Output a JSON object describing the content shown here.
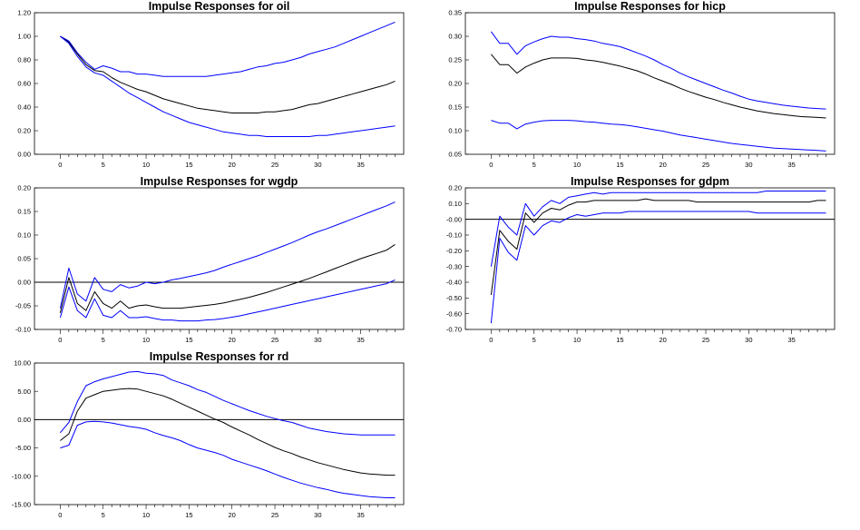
{
  "colors": {
    "point": "#000000",
    "band": "#0000ff",
    "frame": "#000000"
  },
  "chart_data": [
    {
      "type": "line",
      "title": "Impulse Responses for oil",
      "x": [
        0,
        1,
        2,
        3,
        4,
        5,
        6,
        7,
        8,
        9,
        10,
        11,
        12,
        13,
        14,
        15,
        16,
        17,
        18,
        19,
        20,
        21,
        22,
        23,
        24,
        25,
        26,
        27,
        28,
        29,
        30,
        31,
        32,
        33,
        34,
        35,
        36,
        37,
        38,
        39
      ],
      "xticks": [
        0,
        5,
        10,
        15,
        20,
        25,
        30,
        35
      ],
      "yticks": [
        0.0,
        0.2,
        0.4,
        0.6,
        0.8,
        1.0,
        1.2
      ],
      "ytick_labels": [
        "0.00",
        "0.20",
        "0.40",
        "0.60",
        "0.80",
        "1.00",
        "1.20"
      ],
      "ylim": [
        0.0,
        1.2
      ],
      "zero_line": false,
      "series": [
        {
          "role": "upper",
          "color": "#0000ff",
          "values": [
            1.0,
            0.96,
            0.86,
            0.78,
            0.72,
            0.75,
            0.73,
            0.7,
            0.7,
            0.68,
            0.68,
            0.67,
            0.66,
            0.66,
            0.66,
            0.66,
            0.66,
            0.66,
            0.67,
            0.68,
            0.69,
            0.7,
            0.72,
            0.74,
            0.75,
            0.77,
            0.78,
            0.8,
            0.82,
            0.85,
            0.87,
            0.89,
            0.91,
            0.94,
            0.97,
            1.0,
            1.03,
            1.06,
            1.09,
            1.12
          ]
        },
        {
          "role": "estimate",
          "color": "#000000",
          "values": [
            1.0,
            0.95,
            0.85,
            0.76,
            0.71,
            0.7,
            0.65,
            0.61,
            0.58,
            0.55,
            0.53,
            0.5,
            0.47,
            0.45,
            0.43,
            0.41,
            0.39,
            0.38,
            0.37,
            0.36,
            0.35,
            0.35,
            0.35,
            0.35,
            0.36,
            0.36,
            0.37,
            0.38,
            0.4,
            0.42,
            0.43,
            0.45,
            0.47,
            0.49,
            0.51,
            0.53,
            0.55,
            0.57,
            0.59,
            0.62
          ]
        },
        {
          "role": "lower",
          "color": "#0000ff",
          "values": [
            1.0,
            0.94,
            0.83,
            0.74,
            0.69,
            0.67,
            0.62,
            0.57,
            0.52,
            0.48,
            0.44,
            0.4,
            0.36,
            0.33,
            0.3,
            0.27,
            0.25,
            0.23,
            0.21,
            0.19,
            0.18,
            0.17,
            0.16,
            0.16,
            0.15,
            0.15,
            0.15,
            0.15,
            0.15,
            0.15,
            0.16,
            0.16,
            0.17,
            0.18,
            0.19,
            0.2,
            0.21,
            0.22,
            0.23,
            0.24
          ]
        }
      ]
    },
    {
      "type": "line",
      "title": "Impulse Responses for hicp",
      "x": [
        0,
        1,
        2,
        3,
        4,
        5,
        6,
        7,
        8,
        9,
        10,
        11,
        12,
        13,
        14,
        15,
        16,
        17,
        18,
        19,
        20,
        21,
        22,
        23,
        24,
        25,
        26,
        27,
        28,
        29,
        30,
        31,
        32,
        33,
        34,
        35,
        36,
        37,
        38,
        39
      ],
      "xticks": [
        0,
        5,
        10,
        15,
        20,
        25,
        30,
        35
      ],
      "yticks": [
        0.05,
        0.1,
        0.15,
        0.2,
        0.25,
        0.3,
        0.35
      ],
      "ytick_labels": [
        "0.05",
        "0.10",
        "0.15",
        "0.20",
        "0.25",
        "0.30",
        "0.35"
      ],
      "ylim": [
        0.05,
        0.35
      ],
      "zero_line": false,
      "series": [
        {
          "role": "upper",
          "color": "#0000ff",
          "values": [
            0.31,
            0.285,
            0.285,
            0.262,
            0.28,
            0.288,
            0.295,
            0.3,
            0.298,
            0.298,
            0.295,
            0.293,
            0.29,
            0.285,
            0.282,
            0.278,
            0.272,
            0.265,
            0.258,
            0.25,
            0.24,
            0.232,
            0.222,
            0.214,
            0.207,
            0.2,
            0.193,
            0.186,
            0.18,
            0.173,
            0.167,
            0.163,
            0.16,
            0.157,
            0.154,
            0.152,
            0.15,
            0.148,
            0.147,
            0.146
          ]
        },
        {
          "role": "estimate",
          "color": "#000000",
          "values": [
            0.262,
            0.24,
            0.24,
            0.222,
            0.235,
            0.243,
            0.25,
            0.254,
            0.254,
            0.254,
            0.253,
            0.25,
            0.248,
            0.245,
            0.241,
            0.237,
            0.232,
            0.227,
            0.22,
            0.212,
            0.205,
            0.198,
            0.19,
            0.183,
            0.177,
            0.171,
            0.166,
            0.16,
            0.155,
            0.15,
            0.146,
            0.142,
            0.139,
            0.136,
            0.134,
            0.132,
            0.13,
            0.129,
            0.128,
            0.127
          ]
        },
        {
          "role": "lower",
          "color": "#0000ff",
          "values": [
            0.122,
            0.116,
            0.116,
            0.104,
            0.114,
            0.118,
            0.121,
            0.122,
            0.122,
            0.122,
            0.121,
            0.119,
            0.118,
            0.116,
            0.114,
            0.113,
            0.111,
            0.108,
            0.105,
            0.102,
            0.099,
            0.095,
            0.091,
            0.088,
            0.085,
            0.082,
            0.079,
            0.076,
            0.073,
            0.071,
            0.069,
            0.067,
            0.065,
            0.063,
            0.062,
            0.061,
            0.06,
            0.059,
            0.058,
            0.057
          ]
        }
      ]
    },
    {
      "type": "line",
      "title": "Impulse Responses for wgdp",
      "x": [
        0,
        1,
        2,
        3,
        4,
        5,
        6,
        7,
        8,
        9,
        10,
        11,
        12,
        13,
        14,
        15,
        16,
        17,
        18,
        19,
        20,
        21,
        22,
        23,
        24,
        25,
        26,
        27,
        28,
        29,
        30,
        31,
        32,
        33,
        34,
        35,
        36,
        37,
        38,
        39
      ],
      "xticks": [
        0,
        5,
        10,
        15,
        20,
        25,
        30,
        35
      ],
      "yticks": [
        -0.1,
        -0.05,
        0.0,
        0.05,
        0.1,
        0.15,
        0.2
      ],
      "ytick_labels": [
        "-0.10",
        "-0.05",
        "0.00",
        "0.05",
        "0.10",
        "0.15",
        "0.20"
      ],
      "ylim": [
        -0.1,
        0.2
      ],
      "zero_line": true,
      "series": [
        {
          "role": "upper",
          "color": "#0000ff",
          "values": [
            -0.055,
            0.03,
            -0.025,
            -0.04,
            0.01,
            -0.015,
            -0.02,
            -0.005,
            -0.012,
            -0.008,
            0.0,
            -0.003,
            0.0,
            0.005,
            0.008,
            0.012,
            0.016,
            0.02,
            0.025,
            0.032,
            0.038,
            0.044,
            0.05,
            0.056,
            0.063,
            0.07,
            0.077,
            0.084,
            0.092,
            0.1,
            0.107,
            0.113,
            0.12,
            0.127,
            0.134,
            0.141,
            0.148,
            0.155,
            0.162,
            0.17
          ]
        },
        {
          "role": "estimate",
          "color": "#000000",
          "values": [
            -0.065,
            0.01,
            -0.045,
            -0.06,
            -0.02,
            -0.045,
            -0.055,
            -0.04,
            -0.055,
            -0.05,
            -0.048,
            -0.052,
            -0.055,
            -0.055,
            -0.055,
            -0.053,
            -0.051,
            -0.049,
            -0.047,
            -0.044,
            -0.04,
            -0.036,
            -0.032,
            -0.027,
            -0.022,
            -0.016,
            -0.01,
            -0.004,
            0.002,
            0.008,
            0.015,
            0.022,
            0.029,
            0.036,
            0.043,
            0.05,
            0.056,
            0.062,
            0.068,
            0.08
          ]
        },
        {
          "role": "lower",
          "color": "#0000ff",
          "values": [
            -0.075,
            -0.01,
            -0.06,
            -0.075,
            -0.035,
            -0.07,
            -0.075,
            -0.06,
            -0.075,
            -0.075,
            -0.073,
            -0.077,
            -0.08,
            -0.08,
            -0.082,
            -0.082,
            -0.082,
            -0.08,
            -0.079,
            -0.077,
            -0.074,
            -0.071,
            -0.067,
            -0.063,
            -0.059,
            -0.055,
            -0.051,
            -0.047,
            -0.043,
            -0.039,
            -0.035,
            -0.031,
            -0.027,
            -0.023,
            -0.019,
            -0.015,
            -0.011,
            -0.007,
            -0.003,
            0.005
          ]
        }
      ]
    },
    {
      "type": "line",
      "title": "Impulse Responses for gdpm",
      "x": [
        0,
        1,
        2,
        3,
        4,
        5,
        6,
        7,
        8,
        9,
        10,
        11,
        12,
        13,
        14,
        15,
        16,
        17,
        18,
        19,
        20,
        21,
        22,
        23,
        24,
        25,
        26,
        27,
        28,
        29,
        30,
        31,
        32,
        33,
        34,
        35,
        36,
        37,
        38,
        39
      ],
      "xticks": [
        0,
        5,
        10,
        15,
        20,
        25,
        30,
        35
      ],
      "yticks": [
        -0.7,
        -0.6,
        -0.5,
        -0.4,
        -0.3,
        -0.2,
        -0.1,
        0.0,
        0.1,
        0.2
      ],
      "ytick_labels": [
        "-0.70",
        "-0.60",
        "-0.50",
        "-0.40",
        "-0.30",
        "-0.20",
        "-0.10",
        "-0.00",
        "0.10",
        "0.20"
      ],
      "ylim": [
        -0.7,
        0.2
      ],
      "zero_line": true,
      "series": [
        {
          "role": "upper",
          "color": "#0000ff",
          "values": [
            -0.3,
            0.02,
            -0.05,
            -0.1,
            0.1,
            0.02,
            0.08,
            0.12,
            0.1,
            0.14,
            0.15,
            0.16,
            0.17,
            0.16,
            0.17,
            0.17,
            0.17,
            0.17,
            0.17,
            0.17,
            0.17,
            0.17,
            0.17,
            0.17,
            0.17,
            0.17,
            0.17,
            0.17,
            0.17,
            0.17,
            0.17,
            0.17,
            0.18,
            0.18,
            0.18,
            0.18,
            0.18,
            0.18,
            0.18,
            0.18
          ]
        },
        {
          "role": "estimate",
          "color": "#000000",
          "values": [
            -0.48,
            -0.07,
            -0.14,
            -0.19,
            0.04,
            -0.02,
            0.04,
            0.07,
            0.06,
            0.09,
            0.11,
            0.11,
            0.12,
            0.12,
            0.12,
            0.12,
            0.12,
            0.12,
            0.13,
            0.12,
            0.12,
            0.12,
            0.12,
            0.12,
            0.11,
            0.11,
            0.11,
            0.11,
            0.11,
            0.11,
            0.11,
            0.11,
            0.11,
            0.11,
            0.11,
            0.11,
            0.11,
            0.11,
            0.12,
            0.12
          ]
        },
        {
          "role": "lower",
          "color": "#0000ff",
          "values": [
            -0.66,
            -0.12,
            -0.21,
            -0.26,
            -0.04,
            -0.1,
            -0.04,
            -0.01,
            -0.02,
            0.01,
            0.03,
            0.02,
            0.03,
            0.04,
            0.04,
            0.04,
            0.05,
            0.05,
            0.05,
            0.05,
            0.05,
            0.05,
            0.05,
            0.05,
            0.05,
            0.05,
            0.05,
            0.05,
            0.05,
            0.05,
            0.05,
            0.04,
            0.04,
            0.04,
            0.04,
            0.04,
            0.04,
            0.04,
            0.04,
            0.04
          ]
        }
      ]
    },
    {
      "type": "line",
      "title": "Impulse Responses for rd",
      "x": [
        0,
        1,
        2,
        3,
        4,
        5,
        6,
        7,
        8,
        9,
        10,
        11,
        12,
        13,
        14,
        15,
        16,
        17,
        18,
        19,
        20,
        21,
        22,
        23,
        24,
        25,
        26,
        27,
        28,
        29,
        30,
        31,
        32,
        33,
        34,
        35,
        36,
        37,
        38,
        39
      ],
      "xticks": [
        0,
        5,
        10,
        15,
        20,
        25,
        30,
        35
      ],
      "yticks": [
        -15,
        -10,
        -5,
        0,
        5,
        10
      ],
      "ytick_labels": [
        "-15.00",
        "-10.00",
        "-5.00",
        "0.00",
        "5.00",
        "10.00"
      ],
      "ylim": [
        -15,
        10
      ],
      "zero_line": true,
      "series": [
        {
          "role": "upper",
          "color": "#0000ff",
          "values": [
            -2.3,
            -0.5,
            3.2,
            6.0,
            6.7,
            7.2,
            7.6,
            8.0,
            8.4,
            8.5,
            8.2,
            8.1,
            7.8,
            7.0,
            6.5,
            6.0,
            5.3,
            4.8,
            4.1,
            3.4,
            2.8,
            2.2,
            1.6,
            1.1,
            0.6,
            0.2,
            -0.2,
            -0.5,
            -1.0,
            -1.5,
            -1.8,
            -2.1,
            -2.3,
            -2.5,
            -2.6,
            -2.7,
            -2.7,
            -2.7,
            -2.7,
            -2.7
          ]
        },
        {
          "role": "estimate",
          "color": "#000000",
          "values": [
            -3.7,
            -2.5,
            1.5,
            3.8,
            4.4,
            5.0,
            5.2,
            5.4,
            5.5,
            5.4,
            5.0,
            4.6,
            4.2,
            3.6,
            2.9,
            2.2,
            1.5,
            0.8,
            0.1,
            -0.5,
            -1.3,
            -2.0,
            -2.7,
            -3.5,
            -4.2,
            -4.9,
            -5.5,
            -6.0,
            -6.6,
            -7.1,
            -7.6,
            -8.0,
            -8.4,
            -8.8,
            -9.1,
            -9.4,
            -9.6,
            -9.7,
            -9.8,
            -9.8
          ]
        },
        {
          "role": "lower",
          "color": "#0000ff",
          "values": [
            -5.0,
            -4.5,
            -1.0,
            -0.4,
            -0.3,
            -0.4,
            -0.6,
            -0.9,
            -1.2,
            -1.4,
            -1.7,
            -2.3,
            -2.8,
            -3.2,
            -3.7,
            -4.4,
            -5.0,
            -5.4,
            -5.8,
            -6.3,
            -7.0,
            -7.5,
            -8.0,
            -8.5,
            -9.0,
            -9.6,
            -10.2,
            -10.7,
            -11.2,
            -11.6,
            -12.0,
            -12.3,
            -12.7,
            -13.0,
            -13.2,
            -13.4,
            -13.6,
            -13.7,
            -13.8,
            -13.8
          ]
        }
      ]
    }
  ]
}
